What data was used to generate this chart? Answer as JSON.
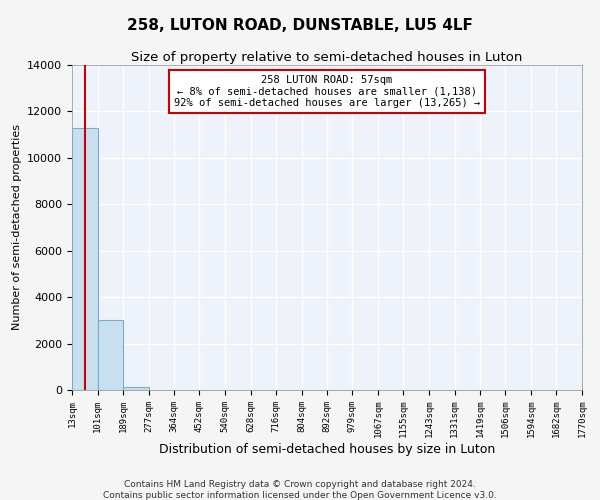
{
  "title": "258, LUTON ROAD, DUNSTABLE, LU5 4LF",
  "subtitle": "Size of property relative to semi-detached houses in Luton",
  "xlabel": "Distribution of semi-detached houses by size in Luton",
  "ylabel": "Number of semi-detached properties",
  "bar_heights": [
    11300,
    3000,
    150,
    0,
    0,
    0,
    0,
    0,
    0,
    0,
    0,
    0,
    0,
    0,
    0,
    0,
    0,
    0,
    0,
    0
  ],
  "bin_edges": [
    13,
    101,
    189,
    277,
    364,
    452,
    540,
    628,
    716,
    804,
    892,
    979,
    1067,
    1155,
    1243,
    1331,
    1419,
    1506,
    1594,
    1682,
    1770
  ],
  "x_tick_labels": [
    "13sqm",
    "101sqm",
    "189sqm",
    "277sqm",
    "364sqm",
    "452sqm",
    "540sqm",
    "628sqm",
    "716sqm",
    "804sqm",
    "892sqm",
    "979sqm",
    "1067sqm",
    "1155sqm",
    "1243sqm",
    "1331sqm",
    "1419sqm",
    "1506sqm",
    "1594sqm",
    "1682sqm",
    "1770sqm"
  ],
  "property_size": 57,
  "ylim": [
    0,
    14000
  ],
  "yticks": [
    0,
    2000,
    4000,
    6000,
    8000,
    10000,
    12000,
    14000
  ],
  "bar_color": "#c8dff0",
  "bar_edge_color": "#7aaccc",
  "vline_color": "#cc0000",
  "annotation_text": "258 LUTON ROAD: 57sqm\n← 8% of semi-detached houses are smaller (1,138)\n92% of semi-detached houses are larger (13,265) →",
  "annotation_box_facecolor": "#ffffff",
  "annotation_box_edgecolor": "#cc0000",
  "footer_text": "Contains HM Land Registry data © Crown copyright and database right 2024.\nContains public sector information licensed under the Open Government Licence v3.0.",
  "bg_color": "#eef2fb",
  "grid_color": "#ffffff",
  "fig_facecolor": "#f5f5f5",
  "title_fontsize": 11,
  "subtitle_fontsize": 9.5,
  "ylabel_fontsize": 8,
  "xlabel_fontsize": 9,
  "ytick_fontsize": 8,
  "xtick_fontsize": 6.5,
  "annotation_fontsize": 7.5,
  "footer_fontsize": 6.5
}
